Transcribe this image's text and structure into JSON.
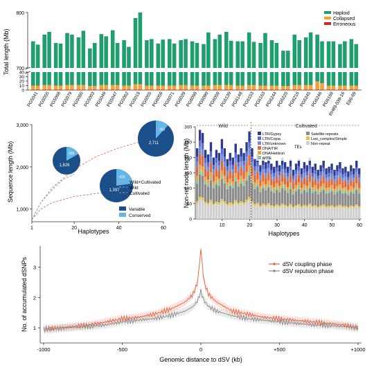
{
  "colors": {
    "haploid": "#1f9e6e",
    "collapsed": "#f2a23a",
    "erroneous": "#d62728",
    "variable": "#1b4f8a",
    "conserved": "#62b6e8",
    "ltr_gypsy": "#2b3b8f",
    "ltr_copia": "#5a6bd6",
    "ltr_unknown": "#7a8fc9",
    "dna_tir": "#e06a3a",
    "dna_helitron": "#f0a040",
    "mite": "#8fc49a",
    "satellite": "#8a8a8a",
    "low_complex": "#e8c33a",
    "non_repeat": "#cfcfcf",
    "coupling": "#e8603c",
    "repulsion": "#8a8a8a"
  },
  "chart_data": [
    {
      "type": "bar",
      "title": "",
      "ylabel": "Total length (Mb)",
      "ylim_upper": [
        700,
        800
      ],
      "ylim_lower": [
        0,
        40
      ],
      "upper_ticks": [
        "700",
        "800"
      ],
      "lower_ticks": [
        "0",
        "10",
        "20",
        "30",
        "40"
      ],
      "categories": [
        "PG5041",
        "PG5055",
        "PG5068",
        "PG5079",
        "PG5080",
        "PG5003",
        "PG5049",
        "PG5047",
        "PG5062",
        "PG5018",
        "PG6055",
        "PG6059",
        "PG6071",
        "PG6029",
        "PG6098",
        "PG6090",
        "PG6059",
        "PG6139",
        "PG6148",
        "PG6153",
        "PG6163",
        "PG6244",
        "PG6225",
        "PG6216",
        "PG6245",
        "PG6246",
        "PG6169",
        "RH89-039-16",
        "E86-69"
      ],
      "xtick_labels": [
        "PG5041",
        "PG5055",
        "PG5068",
        "PG5079",
        "PG5080",
        "PG5003",
        "PG5049",
        "PG5047",
        "PG5062",
        "PG5018",
        "PG6055",
        "PG6059",
        "PG6071",
        "PG6029",
        "PG6098",
        "PG6090",
        "PG6059",
        "PG6139",
        "PG6148",
        "PG6153",
        "PG6163",
        "PG6244",
        "PG6225",
        "PG6216",
        "PG6245",
        "PG6246",
        "PG6169",
        "RH89-039-16",
        "E86-69"
      ],
      "legend": [
        "Haploid",
        "Collapsed",
        "Erroneous"
      ],
      "legend_position": "top-right",
      "series": [
        {
          "name": "Haploid",
          "values_pairs": [
            [
              748,
              742
            ],
            [
              760,
              765
            ],
            [
              745,
              744
            ],
            [
              763,
              760
            ],
            [
              755,
              767
            ],
            [
              735,
              745
            ],
            [
              761,
              757
            ],
            [
              768,
              745
            ],
            [
              750,
              738
            ],
            [
              790,
              800
            ],
            [
              750,
              752
            ],
            [
              744,
              751
            ],
            [
              752,
              744
            ],
            [
              750,
              752
            ],
            [
              748,
              745
            ],
            [
              743,
              764
            ],
            [
              752,
              760
            ],
            [
              765,
              749
            ],
            [
              748,
              748
            ],
            [
              764,
              747
            ],
            [
              745,
              763
            ],
            [
              750,
              745
            ],
            [
              731,
              731
            ],
            [
              760,
              750
            ],
            [
              755,
              764
            ],
            [
              760,
              748
            ],
            [
              748,
              748
            ],
            [
              743,
              748
            ],
            [
              752,
              743
            ]
          ]
        },
        {
          "name": "Collapsed",
          "values_pairs": [
            [
              9,
              9
            ],
            [
              10,
              10
            ],
            [
              9,
              9
            ],
            [
              10,
              10
            ],
            [
              10,
              10
            ],
            [
              8,
              8
            ],
            [
              10,
              10
            ],
            [
              10,
              10
            ],
            [
              9,
              9
            ],
            [
              12,
              12
            ],
            [
              9,
              9
            ],
            [
              9,
              9
            ],
            [
              9,
              9
            ],
            [
              10,
              10
            ],
            [
              9,
              9
            ],
            [
              9,
              9
            ],
            [
              10,
              10
            ],
            [
              10,
              10
            ],
            [
              9,
              9
            ],
            [
              10,
              10
            ],
            [
              9,
              9
            ],
            [
              9,
              9
            ],
            [
              8,
              8
            ],
            [
              10,
              10
            ],
            [
              10,
              10
            ],
            [
              18,
              14
            ],
            [
              9,
              9
            ],
            [
              9,
              9
            ],
            [
              9,
              9
            ]
          ]
        },
        {
          "name": "Erroneous",
          "values_pairs": [
            [
              1,
              1
            ],
            [
              1,
              1
            ],
            [
              1,
              1
            ],
            [
              1,
              1
            ],
            [
              1,
              1
            ],
            [
              1,
              1
            ],
            [
              1,
              1
            ],
            [
              1,
              1
            ],
            [
              1,
              1
            ],
            [
              1,
              1
            ],
            [
              1,
              1
            ],
            [
              1,
              1
            ],
            [
              1,
              1
            ],
            [
              1,
              1
            ],
            [
              1,
              1
            ],
            [
              1,
              1
            ],
            [
              1,
              1
            ],
            [
              1,
              1
            ],
            [
              1,
              1
            ],
            [
              1,
              1
            ],
            [
              1,
              1
            ],
            [
              1,
              1
            ],
            [
              1,
              1
            ],
            [
              1,
              1
            ],
            [
              1,
              1
            ],
            [
              1,
              1
            ],
            [
              1,
              1
            ],
            [
              1,
              1
            ],
            [
              1,
              1
            ]
          ]
        }
      ]
    },
    {
      "type": "line",
      "ylabel": "Sequence length (Mb)",
      "xlabel": "Haplotypes",
      "xlim": [
        1,
        60
      ],
      "ylim": [
        700,
        3000
      ],
      "x_ticks": [
        "1",
        "20",
        "40",
        "60"
      ],
      "y_ticks": [
        "1,000",
        "2,000",
        "3,000"
      ],
      "series": [
        {
          "name": "Wild+Cultivated",
          "x": [
            1,
            5,
            10,
            20,
            30,
            40,
            50,
            60
          ],
          "y": [
            750,
            1150,
            1500,
            1950,
            2250,
            2450,
            2600,
            2711
          ]
        },
        {
          "name": "Wild",
          "x": [
            1,
            5,
            10,
            15,
            20
          ],
          "y": [
            750,
            1150,
            1450,
            1700,
            1826
          ]
        },
        {
          "name": "Cultivated",
          "x": [
            1,
            5,
            10,
            20,
            30,
            40
          ],
          "y": [
            750,
            1000,
            1150,
            1300,
            1370,
            1397
          ]
        }
      ],
      "pies": [
        {
          "variable_label": "1,826",
          "conserved_label": "368",
          "variable": 1826,
          "conserved": 368
        },
        {
          "variable_label": "1,397",
          "conserved_label": "416",
          "variable": 1397,
          "conserved": 416
        },
        {
          "variable_label": "2,711",
          "conserved_label": "363",
          "variable": 2711,
          "conserved": 363
        }
      ],
      "legend_lines": [
        "Wild+Cultivated",
        "Wild",
        "Cultivated"
      ],
      "legend_pie": [
        "Variable",
        "Conserved"
      ]
    },
    {
      "type": "bar",
      "ylabel": "Non-ref node length (Mb)",
      "xlabel": "Haplotypes",
      "ylim": [
        0,
        300
      ],
      "y_ticks": [
        "0",
        "50",
        "100",
        "150",
        "200",
        "250",
        "300"
      ],
      "x_ticks": [
        "10",
        "20",
        "30",
        "40",
        "50",
        "60"
      ],
      "group_labels": [
        "Wild",
        "Cultivated"
      ],
      "te_label": "TEs",
      "legend_left": [
        "LTR/Gypsy",
        "LTR/Copia",
        "LTR/unknown",
        "DNA/TIR",
        "DNA/Helitron",
        "MITE"
      ],
      "legend_right": [
        "Satellite repeats",
        "Low_complex/Simple",
        "Non-repeat"
      ],
      "totals": [
        230,
        290,
        280,
        225,
        210,
        250,
        200,
        225,
        215,
        260,
        230,
        195,
        215,
        200,
        245,
        210,
        230,
        215,
        250,
        285,
        230,
        195,
        210,
        175,
        200,
        185,
        205,
        180,
        170,
        190,
        175,
        200,
        185,
        170,
        195,
        160,
        180,
        195,
        165,
        185,
        175,
        200,
        170,
        180,
        160,
        175,
        190,
        165,
        170,
        180,
        160,
        175,
        185,
        165,
        170,
        155,
        175,
        165,
        190,
        165
      ]
    },
    {
      "type": "line",
      "ylabel": "No. of accumulated dSNPs",
      "xlabel": "Genomic distance to dSV (kb)",
      "xlim": [
        -1000,
        1000
      ],
      "ylim": [
        0.5,
        3.7
      ],
      "x_ticks": [
        "-1000",
        "-500",
        "0",
        "+500",
        "+1000"
      ],
      "y_ticks": [
        "1",
        "2",
        "3"
      ],
      "legend": [
        "dSV coupling phase",
        "dSV repulsion phase"
      ],
      "legend_position": "top-right",
      "series": [
        {
          "name": "dSV coupling phase",
          "x": [
            -1000,
            -900,
            -800,
            -700,
            -600,
            -500,
            -400,
            -300,
            -200,
            -100,
            -50,
            -20,
            0,
            20,
            50,
            100,
            200,
            300,
            400,
            500,
            600,
            700,
            800,
            900,
            1000
          ],
          "y": [
            0.95,
            1.0,
            1.05,
            1.1,
            1.2,
            1.3,
            1.35,
            1.45,
            1.6,
            1.85,
            2.1,
            2.5,
            3.6,
            2.5,
            2.1,
            1.85,
            1.55,
            1.45,
            1.35,
            1.3,
            1.25,
            1.2,
            1.15,
            1.1,
            1.0
          ]
        },
        {
          "name": "dSV repulsion phase",
          "x": [
            -1000,
            -900,
            -800,
            -700,
            -600,
            -500,
            -400,
            -300,
            -200,
            -100,
            -50,
            -20,
            0,
            20,
            50,
            100,
            200,
            300,
            400,
            500,
            600,
            700,
            800,
            900,
            1000
          ],
          "y": [
            0.95,
            0.98,
            1.02,
            1.05,
            1.1,
            1.2,
            1.25,
            1.3,
            1.4,
            1.55,
            1.7,
            1.9,
            2.2,
            1.9,
            1.7,
            1.55,
            1.4,
            1.3,
            1.25,
            1.2,
            1.15,
            1.1,
            1.08,
            1.05,
            1.0
          ]
        }
      ]
    }
  ]
}
